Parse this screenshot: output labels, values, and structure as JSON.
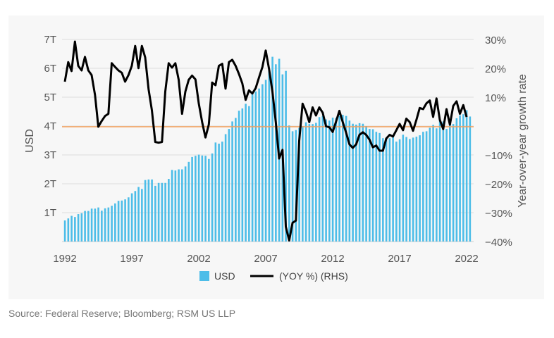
{
  "source": "Source: Federal Reserve; Bloomberg; RSM US LLP",
  "chart_data": {
    "type": "bar+line",
    "x_start": "1992Q1",
    "frequency": "quarterly",
    "x_tick_labels": [
      "1992",
      "1997",
      "2002",
      "2007",
      "2012",
      "2017",
      "2022"
    ],
    "left_axis": {
      "label": "USD",
      "ylim": [
        0,
        7
      ],
      "tick_labels": [
        "1T",
        "2T",
        "3T",
        "4T",
        "5T",
        "6T",
        "7T"
      ],
      "tick_values": [
        1,
        2,
        3,
        4,
        5,
        6,
        7
      ]
    },
    "right_axis": {
      "label": "Year-over-year growth rate",
      "ylim": [
        -40,
        30
      ],
      "tick_labels": [
        "30%",
        "20%",
        "10%",
        "−10%",
        "−20%",
        "−30%",
        "−40%"
      ],
      "tick_values": [
        30,
        20,
        10,
        -10,
        -20,
        -30,
        -40
      ]
    },
    "reference_line": {
      "value_right_axis": 0,
      "color": "#f5a05a"
    },
    "grid": true,
    "legend": {
      "placement": "bottom"
    },
    "series": [
      {
        "name": "USD",
        "type": "bar",
        "axis": "left",
        "unit": "trillions USD",
        "color": "#4dbde8",
        "values": [
          0.73,
          0.8,
          0.89,
          0.85,
          0.95,
          0.98,
          1.06,
          1.06,
          1.14,
          1.14,
          1.18,
          1.07,
          1.15,
          1.18,
          1.24,
          1.32,
          1.41,
          1.42,
          1.46,
          1.53,
          1.67,
          1.75,
          1.89,
          1.82,
          2.13,
          2.15,
          2.15,
          1.93,
          2.03,
          2.03,
          2.03,
          2.17,
          2.48,
          2.46,
          2.5,
          2.5,
          2.6,
          2.76,
          2.93,
          2.97,
          3.01,
          2.98,
          2.97,
          2.86,
          3.05,
          3.43,
          3.39,
          3.46,
          3.72,
          3.9,
          4.16,
          4.28,
          4.53,
          4.61,
          4.77,
          4.69,
          5.12,
          5.2,
          5.3,
          5.45,
          5.6,
          5.9,
          6.4,
          6.14,
          6.33,
          5.79,
          5.91,
          4.02,
          3.82,
          3.86,
          3.94,
          4.0,
          4.13,
          4.07,
          4.07,
          4.11,
          4.31,
          4.35,
          4.23,
          4.19,
          4.29,
          4.28,
          4.35,
          4.39,
          4.35,
          4.19,
          4.08,
          4.05,
          4.1,
          4.08,
          4.0,
          3.9,
          3.89,
          3.8,
          3.76,
          3.58,
          3.58,
          3.58,
          3.66,
          3.46,
          3.54,
          3.7,
          3.62,
          3.55,
          3.6,
          3.63,
          3.68,
          3.8,
          3.82,
          3.94,
          4.04,
          3.92,
          4.2,
          4.16,
          3.9,
          4.19,
          4.07,
          4.27,
          4.37,
          4.41,
          4.55,
          4.33
        ]
      },
      {
        "name": "(YOY %) (RHS)",
        "type": "line",
        "axis": "right",
        "unit": "%",
        "color": "#000000",
        "values": [
          15.6,
          22.4,
          19.3,
          29.5,
          21.1,
          19.5,
          24.2,
          19.5,
          17.9,
          11,
          0,
          2,
          3.7,
          4.5,
          22,
          20.7,
          19.5,
          18.7,
          15.6,
          17.9,
          21.1,
          28,
          20.3,
          28,
          24,
          13,
          5.7,
          -5.3,
          -5.5,
          -5.3,
          12.2,
          22,
          20.5,
          22,
          16.3,
          4.5,
          12.2,
          16.3,
          17.7,
          16.4,
          8.1,
          1.6,
          -3.7,
          0.8,
          15.3,
          14.4,
          21.1,
          21.8,
          13.2,
          22.4,
          23.2,
          21.1,
          18.3,
          15,
          9.3,
          12.6,
          11.5,
          13.4,
          17.1,
          20.7,
          26.4,
          19.9,
          12.2,
          1.6,
          -11,
          -8,
          -34.6,
          -39.4,
          -33.3,
          -32.5,
          -4.9,
          8,
          5.3,
          1.6,
          6.7,
          3.9,
          6.7,
          4.9,
          0.2,
          -0.2,
          -1.8,
          1.8,
          5.5,
          1.6,
          -2,
          -6.1,
          -7.3,
          -6.1,
          -2.8,
          -1.9,
          -2.8,
          -4.5,
          -7.1,
          -6.5,
          -8.3,
          -8.3,
          -4.1,
          -2.8,
          -3.4,
          -1.2,
          1,
          -1.2,
          2.8,
          1.6,
          -1.4,
          2.4,
          6.5,
          6.1,
          8.1,
          9.1,
          3.4,
          9.8,
          2.4,
          -0.8,
          6.1,
          0.7,
          7.2,
          8.8,
          4.5,
          7.5,
          3.4
        ]
      }
    ]
  }
}
